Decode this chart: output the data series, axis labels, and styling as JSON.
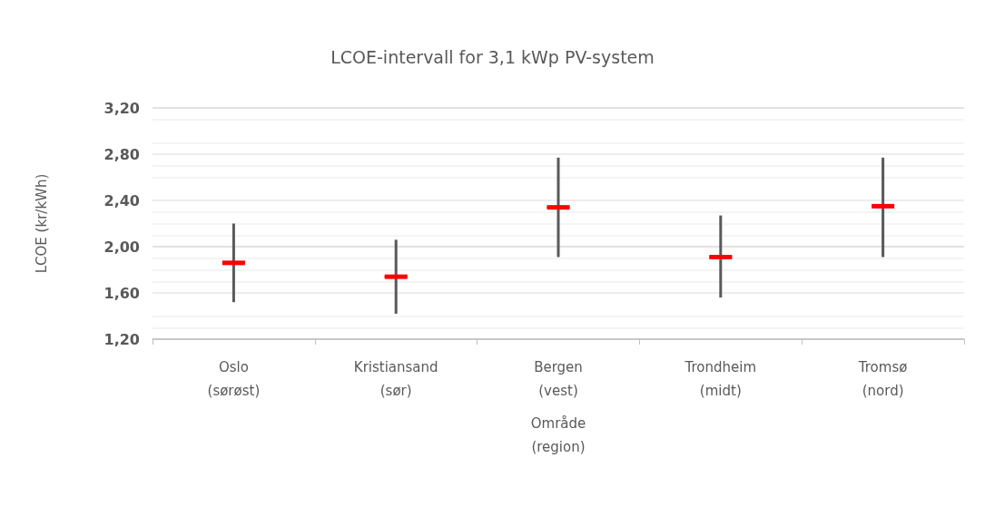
{
  "chart_data": {
    "type": "box",
    "title": "LCOE-intervall for 3,1 kWp PV-system",
    "xlabel": "Område\n(region)",
    "ylabel": "LCOE (kr/kWh)",
    "categories": [
      "Oslo\n(sørøst)",
      "Kristiansand\n(sør)",
      "Bergen\n(vest)",
      "Trondheim\n(midt)",
      "Tromsø\n(nord)"
    ],
    "series": [
      {
        "color": "#ff0000",
        "boxes": [
          {
            "low": 1.52,
            "q1": 1.86,
            "median": 1.86,
            "q3": 1.86,
            "high": 2.2
          },
          {
            "low": 1.42,
            "q1": 1.74,
            "median": 1.74,
            "q3": 1.74,
            "high": 2.06
          },
          {
            "low": 1.91,
            "q1": 2.34,
            "median": 2.34,
            "q3": 2.34,
            "high": 2.77
          },
          {
            "low": 1.56,
            "q1": 1.91,
            "median": 1.91,
            "q3": 1.91,
            "high": 2.27
          },
          {
            "low": 1.91,
            "q1": 2.35,
            "median": 2.35,
            "q3": 2.35,
            "high": 2.77
          }
        ]
      }
    ],
    "ylim": [
      1.2,
      3.2
    ],
    "yticks": [
      {
        "value": 1.2,
        "label": "1,20"
      },
      {
        "value": 1.6,
        "label": "1,60"
      },
      {
        "value": 2.0,
        "label": "2,00"
      },
      {
        "value": 2.4,
        "label": "2,40"
      },
      {
        "value": 2.8,
        "label": "2,80"
      },
      {
        "value": 3.2,
        "label": "3,20"
      }
    ],
    "grid": true
  }
}
